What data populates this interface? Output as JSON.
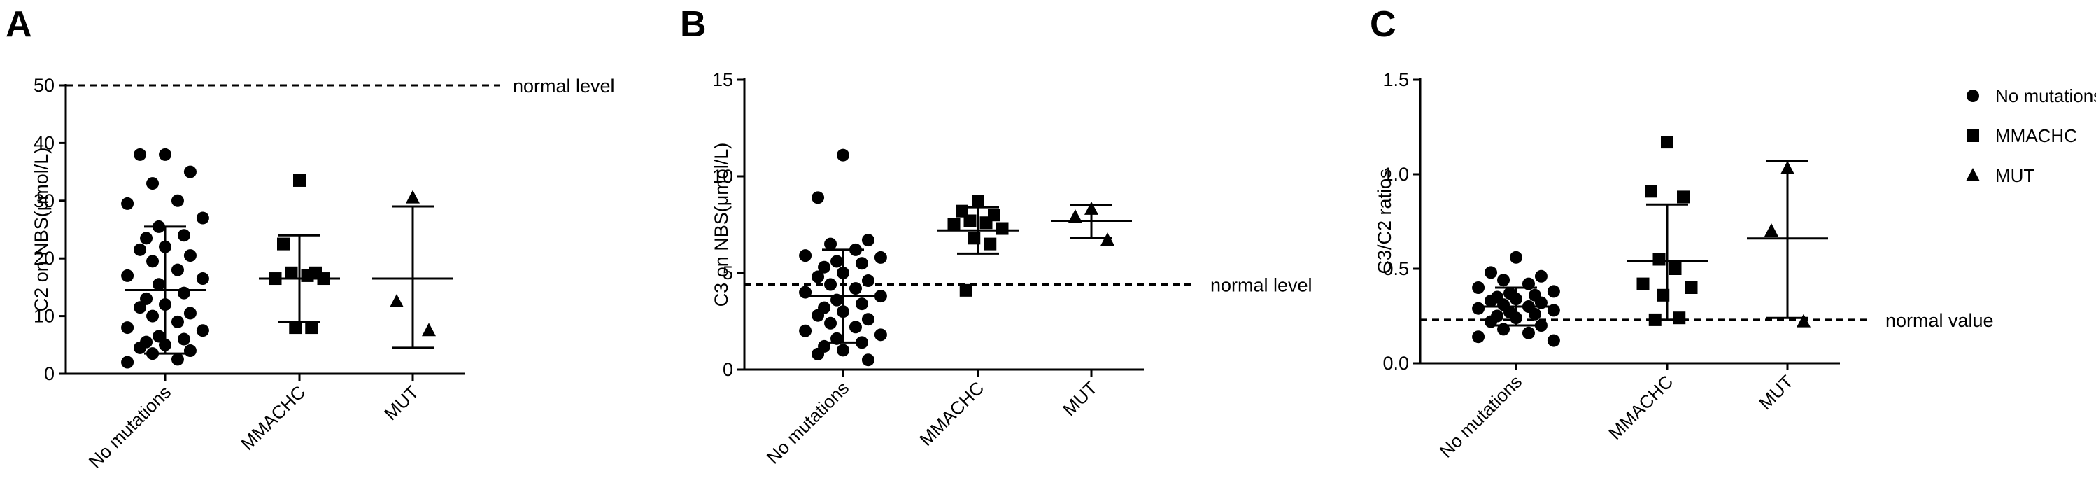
{
  "legend": {
    "position": "right",
    "entries": [
      {
        "label": "No mutations",
        "marker": "circle"
      },
      {
        "label": "MMACHC",
        "marker": "square"
      },
      {
        "label": "MUT",
        "marker": "triangle"
      }
    ]
  },
  "chart_data": [
    {
      "panel": "A",
      "type": "scatter",
      "ylabel": "C2 on NBS(μmol/L)",
      "ylim": [
        0,
        50
      ],
      "yticks": [
        0,
        10,
        20,
        30,
        40,
        50
      ],
      "categories": [
        "No mutations",
        "MMACHC",
        "MUT"
      ],
      "reference": {
        "value": 50,
        "label": "normal level"
      },
      "series": [
        {
          "category": "No mutations",
          "marker": "circle",
          "mean": 14.5,
          "error": [
            3.5,
            25.5
          ],
          "values": [
            38,
            38,
            35,
            33,
            30,
            29.5,
            27,
            25.5,
            24,
            23.5,
            22,
            21.5,
            20.5,
            19.5,
            18,
            17,
            16.5,
            15.5,
            14,
            13,
            12,
            11.5,
            10.5,
            10,
            9,
            8,
            7.5,
            6.5,
            6,
            5.5,
            5,
            4.5,
            4,
            3.5,
            2.5,
            2
          ]
        },
        {
          "category": "MMACHC",
          "marker": "square",
          "mean": 16.5,
          "error": [
            9,
            24
          ],
          "values": [
            33.5,
            22.5,
            17.5,
            17.5,
            17,
            16.5,
            16.5,
            8,
            8
          ]
        },
        {
          "category": "MUT",
          "marker": "triangle",
          "mean": 16.5,
          "error": [
            4.5,
            29
          ],
          "values": [
            30.5,
            12.5,
            7.5
          ]
        }
      ]
    },
    {
      "panel": "B",
      "type": "scatter",
      "ylabel": "C3 on NBS(μmol/L)",
      "ylim": [
        0,
        15
      ],
      "yticks": [
        0,
        5,
        10,
        15
      ],
      "categories": [
        "No mutations",
        "MMACHC",
        "MUT"
      ],
      "reference": {
        "value": 4.4,
        "label": "normal level"
      },
      "series": [
        {
          "category": "No mutations",
          "marker": "circle",
          "mean": 3.8,
          "error": [
            1.4,
            6.2
          ],
          "values": [
            11.1,
            8.9,
            6.7,
            6.5,
            6.2,
            5.9,
            5.8,
            5.6,
            5.5,
            5.3,
            5.0,
            4.8,
            4.6,
            4.4,
            4.2,
            4.0,
            3.8,
            3.6,
            3.4,
            3.2,
            3.0,
            2.8,
            2.6,
            2.4,
            2.2,
            2.0,
            1.8,
            1.6,
            1.4,
            1.2,
            1.0,
            0.8,
            0.5
          ]
        },
        {
          "category": "MMACHC",
          "marker": "square",
          "mean": 7.2,
          "error": [
            6.0,
            8.4
          ],
          "values": [
            8.7,
            8.2,
            8.0,
            7.7,
            7.6,
            7.5,
            7.3,
            6.8,
            6.5,
            4.1
          ]
        },
        {
          "category": "MUT",
          "marker": "triangle",
          "mean": 7.7,
          "error": [
            6.8,
            8.5
          ],
          "values": [
            8.3,
            7.9,
            6.7
          ]
        }
      ]
    },
    {
      "panel": "C",
      "type": "scatter",
      "ylabel": "C3/C2 ratios",
      "ylim": [
        0,
        1.5
      ],
      "yticks": [
        0.0,
        0.5,
        1.0,
        1.5
      ],
      "yticklabels": [
        "0.0",
        "0.5",
        "1.0",
        "1.5"
      ],
      "categories": [
        "No mutations",
        "MMACHC",
        "MUT"
      ],
      "reference": {
        "value": 0.23,
        "label": "normal value"
      },
      "series": [
        {
          "category": "No mutations",
          "marker": "circle",
          "mean": 0.3,
          "error": [
            0.2,
            0.4
          ],
          "values": [
            0.56,
            0.48,
            0.46,
            0.44,
            0.42,
            0.4,
            0.38,
            0.37,
            0.36,
            0.35,
            0.34,
            0.33,
            0.32,
            0.31,
            0.3,
            0.29,
            0.28,
            0.27,
            0.26,
            0.25,
            0.24,
            0.22,
            0.2,
            0.18,
            0.16,
            0.14,
            0.12
          ]
        },
        {
          "category": "MMACHC",
          "marker": "square",
          "mean": 0.54,
          "error": [
            0.23,
            0.84
          ],
          "values": [
            1.17,
            0.91,
            0.88,
            0.55,
            0.5,
            0.42,
            0.4,
            0.36,
            0.24,
            0.23
          ]
        },
        {
          "category": "MUT",
          "marker": "triangle",
          "mean": 0.66,
          "error": [
            0.24,
            1.07
          ],
          "values": [
            1.03,
            0.7,
            0.22
          ]
        }
      ]
    }
  ]
}
